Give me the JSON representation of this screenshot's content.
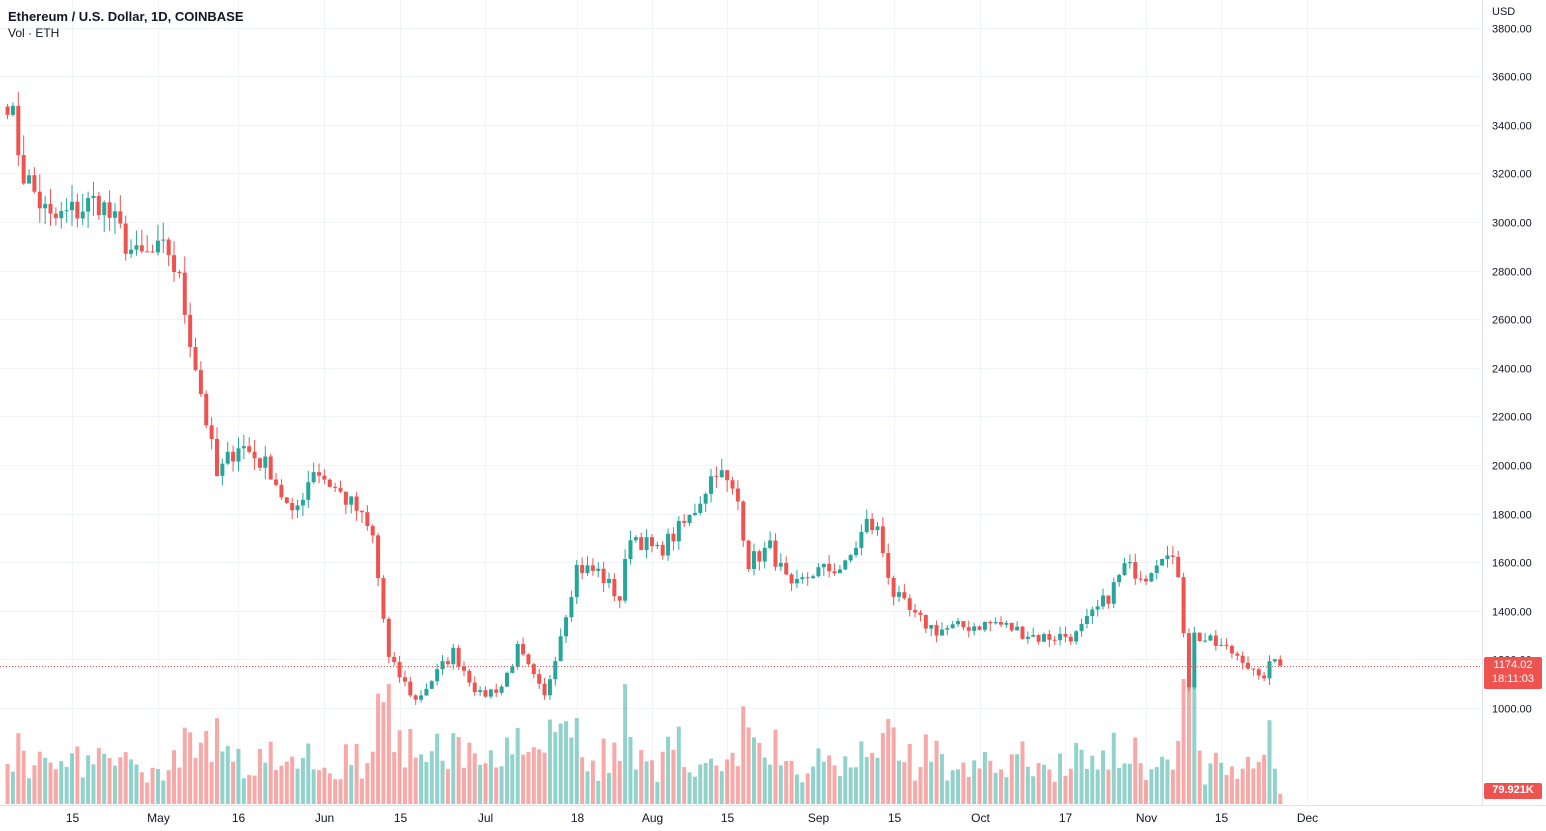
{
  "header": {
    "title": "Ethereum / U.S. Dollar, 1D, COINBASE",
    "volume_label": "Vol · ETH"
  },
  "axis": {
    "currency": "USD",
    "price_ticks": [
      "1000.00",
      "1200.00",
      "1400.00",
      "1600.00",
      "1800.00",
      "2000.00",
      "2200.00",
      "2400.00",
      "2600.00",
      "2800.00",
      "3000.00",
      "3200.00",
      "3400.00",
      "3600.00",
      "3800.00"
    ],
    "time_ticks": [
      "15",
      "May",
      "16",
      "Jun",
      "15",
      "Jul",
      "18",
      "Aug",
      "15",
      "Sep",
      "15",
      "Oct",
      "17",
      "Nov",
      "15",
      "Dec"
    ]
  },
  "current": {
    "price": "1174.02",
    "countdown": "18:11:03",
    "volume": "79.921K"
  },
  "colors": {
    "up": "#26a69a",
    "down": "#ef5350",
    "grid": "#f0f3fa",
    "axis_text": "#131722"
  },
  "chart_data": {
    "type": "candlestick",
    "title": "Ethereum / U.S. Dollar, 1D, COINBASE",
    "symbol": "ETH/USD",
    "interval": "1D",
    "exchange": "COINBASE",
    "xlabel": "",
    "ylabel": "USD",
    "ylim": [
      920,
      3820
    ],
    "grid": true,
    "last_price": 1174.02,
    "last_volume": "79.921K",
    "x_ticks": [
      "15",
      "May",
      "16",
      "Jun",
      "15",
      "Jul",
      "18",
      "Aug",
      "15",
      "Sep",
      "15",
      "Oct",
      "17",
      "Nov",
      "15",
      "Dec"
    ],
    "y_ticks": [
      1000,
      1200,
      1400,
      1600,
      1800,
      2000,
      2200,
      2400,
      2600,
      2800,
      3000,
      3200,
      3400,
      3600,
      3800
    ],
    "series": [
      {
        "name": "Ethereum / U.S. Dollar",
        "anchors": [
          [
            "2022-04-03",
            3520
          ],
          [
            "2022-04-06",
            3200
          ],
          [
            "2022-04-11",
            3000
          ],
          [
            "2022-04-20",
            3090
          ],
          [
            "2022-04-27",
            2850
          ],
          [
            "2022-05-03",
            2880
          ],
          [
            "2022-05-05",
            2750
          ],
          [
            "2022-05-09",
            2300
          ],
          [
            "2022-05-12",
            1950
          ],
          [
            "2022-05-16",
            2090
          ],
          [
            "2022-05-22",
            1980
          ],
          [
            "2022-05-26",
            1780
          ],
          [
            "2022-05-30",
            1990
          ],
          [
            "2022-06-07",
            1815
          ],
          [
            "2022-06-10",
            1700
          ],
          [
            "2022-06-13",
            1200
          ],
          [
            "2022-06-18",
            1030
          ],
          [
            "2022-06-25",
            1230
          ],
          [
            "2022-06-30",
            1050
          ],
          [
            "2022-07-04",
            1090
          ],
          [
            "2022-07-07",
            1240
          ],
          [
            "2022-07-12",
            1040
          ],
          [
            "2022-07-18",
            1580
          ],
          [
            "2022-07-22",
            1560
          ],
          [
            "2022-07-26",
            1450
          ],
          [
            "2022-07-28",
            1720
          ],
          [
            "2022-08-02",
            1640
          ],
          [
            "2022-08-08",
            1780
          ],
          [
            "2022-08-13",
            1990
          ],
          [
            "2022-08-17",
            1850
          ],
          [
            "2022-08-19",
            1600
          ],
          [
            "2022-08-23",
            1660
          ],
          [
            "2022-08-27",
            1480
          ],
          [
            "2022-08-31",
            1560
          ],
          [
            "2022-09-06",
            1580
          ],
          [
            "2022-09-10",
            1760
          ],
          [
            "2022-09-12",
            1730
          ],
          [
            "2022-09-15",
            1470
          ],
          [
            "2022-09-19",
            1370
          ],
          [
            "2022-09-23",
            1320
          ],
          [
            "2022-10-04",
            1350
          ],
          [
            "2022-10-12",
            1290
          ],
          [
            "2022-10-19",
            1300
          ],
          [
            "2022-10-25",
            1460
          ],
          [
            "2022-10-28",
            1580
          ],
          [
            "2022-11-01",
            1550
          ],
          [
            "2022-11-04",
            1650
          ],
          [
            "2022-11-07",
            1560
          ],
          [
            "2022-11-09",
            1100
          ],
          [
            "2022-11-10",
            1300
          ],
          [
            "2022-11-15",
            1250
          ],
          [
            "2022-11-19",
            1210
          ],
          [
            "2022-11-22",
            1110
          ],
          [
            "2022-11-25",
            1200
          ],
          [
            "2022-11-26",
            1174
          ]
        ]
      }
    ],
    "volume": {
      "name": "Vol · ETH",
      "last": "79.921K"
    }
  }
}
